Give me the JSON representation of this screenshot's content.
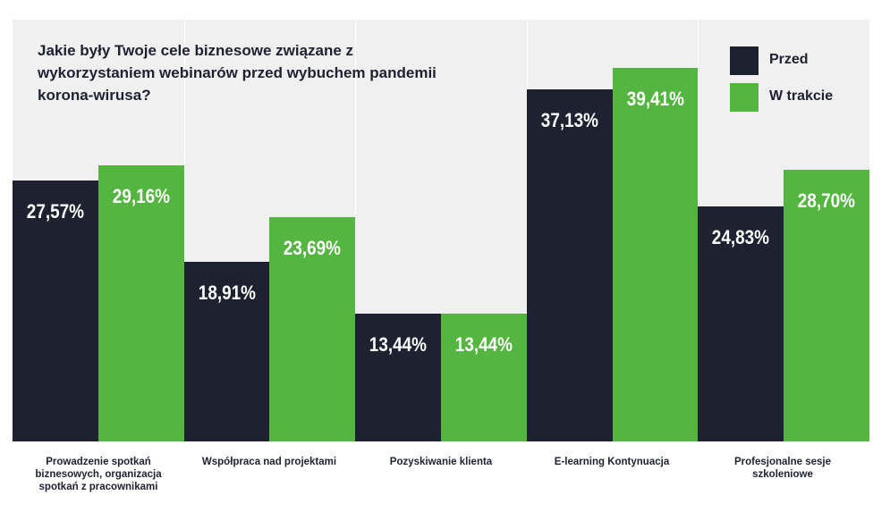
{
  "colors": {
    "before": "#1e2130",
    "during": "#55b541",
    "background": "#f0f0f0",
    "text": "#1e2130"
  },
  "chart_data": {
    "type": "bar",
    "title": "Jakie były Twoje cele biznesowe związane z wykorzystaniem webinarów przed wybuchem pandemii korona-wirusa?",
    "categories": [
      "Prowadzenie spotkań biznesowych, organizacja spotkań z pracownikami",
      "Współpraca nad projektami",
      "Pozyskiwanie klienta",
      "E-learning Kontynuacja",
      "Profesjonalne sesje szkoleniowe"
    ],
    "series": [
      {
        "name": "Przed",
        "values": [
          27.57,
          18.91,
          13.44,
          37.13,
          24.83
        ],
        "labels": [
          "27,57%",
          "18,91%",
          "13,44%",
          "37,13%",
          "24,83%"
        ]
      },
      {
        "name": "W trakcie",
        "values": [
          29.16,
          23.69,
          13.44,
          39.41,
          28.7
        ],
        "labels": [
          "29,16%",
          "23,69%",
          "13,44%",
          "39,41%",
          "28,70%"
        ]
      }
    ],
    "ylim": [
      0,
      44.5
    ],
    "grid": false,
    "legend_position": "top-right",
    "axes_visible": false
  }
}
